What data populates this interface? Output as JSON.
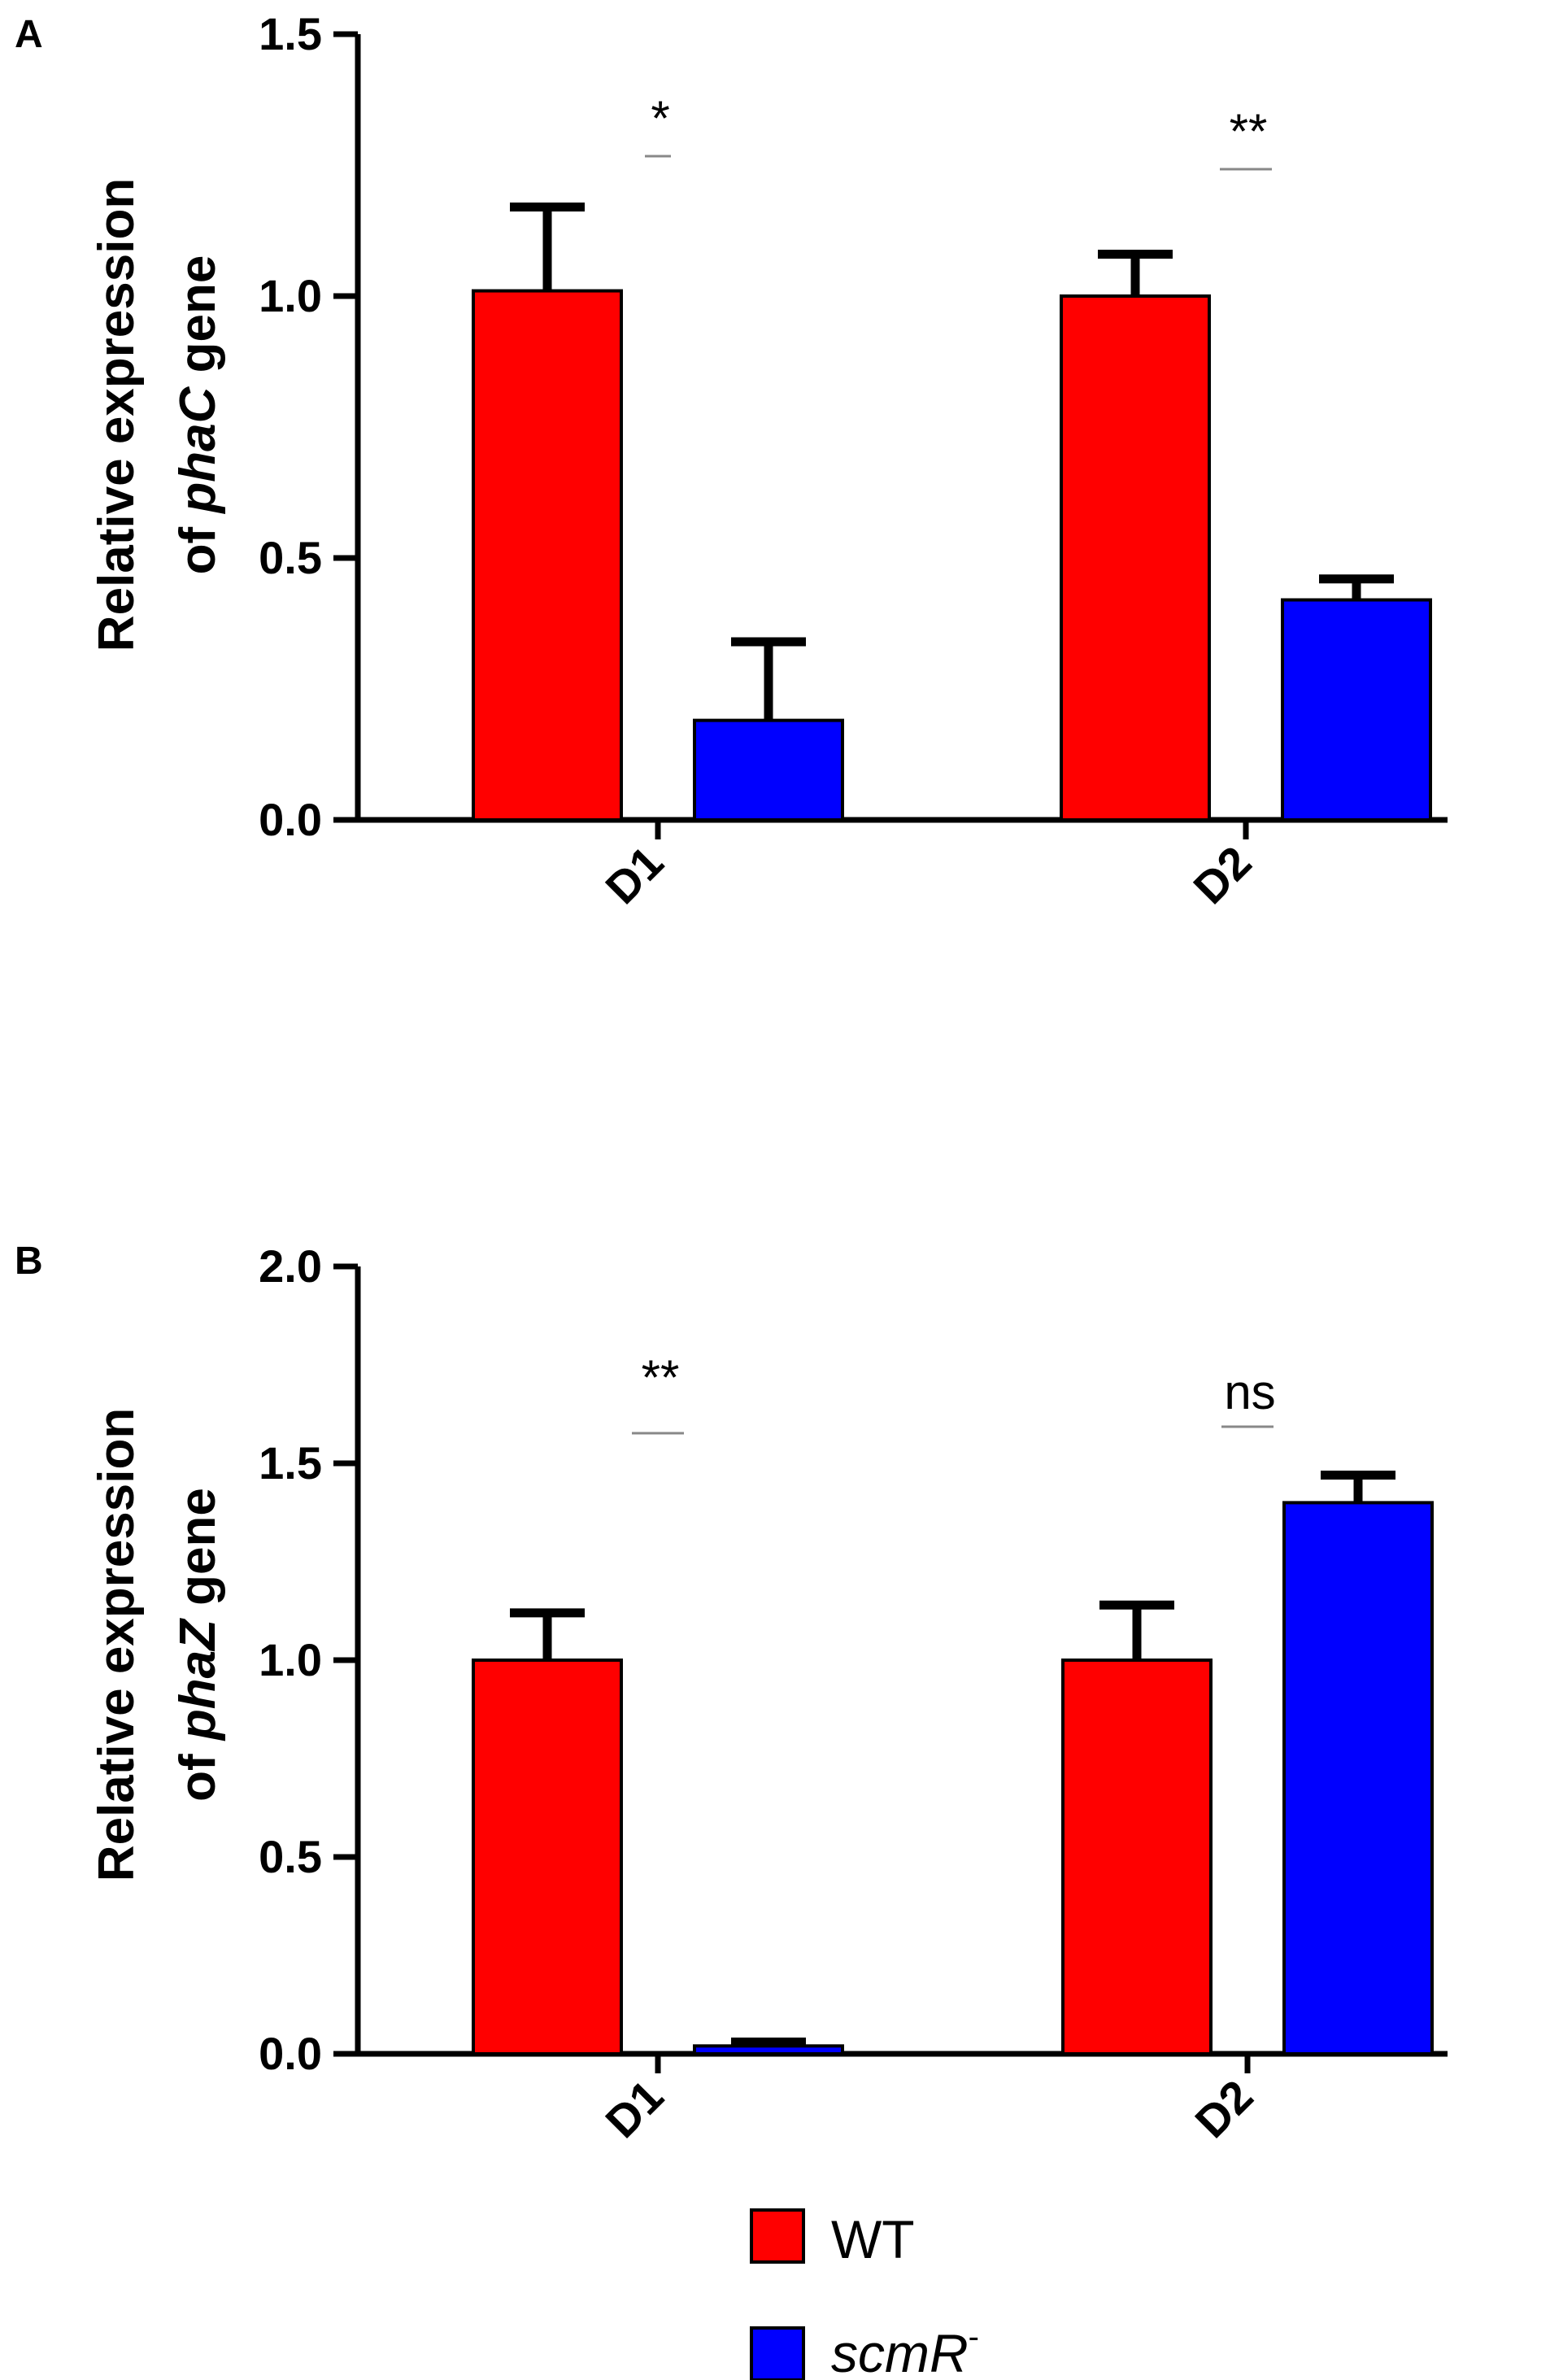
{
  "chart_data": [
    {
      "type": "bar",
      "panel": "A",
      "ylabel_line1": "Relative expression",
      "ylabel_line2_prefix": "of ",
      "ylabel_gene": "phaC",
      "ylabel_line2_suffix": " gene",
      "categories": [
        "D1",
        "D2"
      ],
      "ylim": [
        0,
        1.5
      ],
      "yticks": [
        "0.0",
        "0.5",
        "1.0",
        "1.5"
      ],
      "series": [
        {
          "name": "WT",
          "color": "#ff0000",
          "values": [
            1.01,
            1.0
          ],
          "errors": [
            0.16,
            0.08
          ]
        },
        {
          "name": "scmR-",
          "color": "#0000ff",
          "values": [
            0.19,
            0.42
          ],
          "errors": [
            0.15,
            0.04
          ]
        }
      ],
      "significance": [
        "*",
        "**"
      ]
    },
    {
      "type": "bar",
      "panel": "B",
      "ylabel_line1": "Relative expression",
      "ylabel_line2_prefix": "of ",
      "ylabel_gene": "phaZ",
      "ylabel_line2_suffix": " gene",
      "categories": [
        "D1",
        "D2"
      ],
      "ylim": [
        0,
        2.0
      ],
      "yticks": [
        "0.0",
        "0.5",
        "1.0",
        "1.5",
        "2.0"
      ],
      "series": [
        {
          "name": "WT",
          "color": "#ff0000",
          "values": [
            1.0,
            1.0
          ],
          "errors": [
            0.12,
            0.14
          ]
        },
        {
          "name": "scmR-",
          "color": "#0000ff",
          "values": [
            0.02,
            1.4
          ],
          "errors": [
            0.01,
            0.07
          ]
        }
      ],
      "significance": [
        "**",
        "ns"
      ]
    }
  ],
  "legend": {
    "wt_label": "WT",
    "wt_color": "#ff0000",
    "mut_label": "scmR",
    "mut_superscript": "-",
    "mut_color": "#0000ff"
  }
}
